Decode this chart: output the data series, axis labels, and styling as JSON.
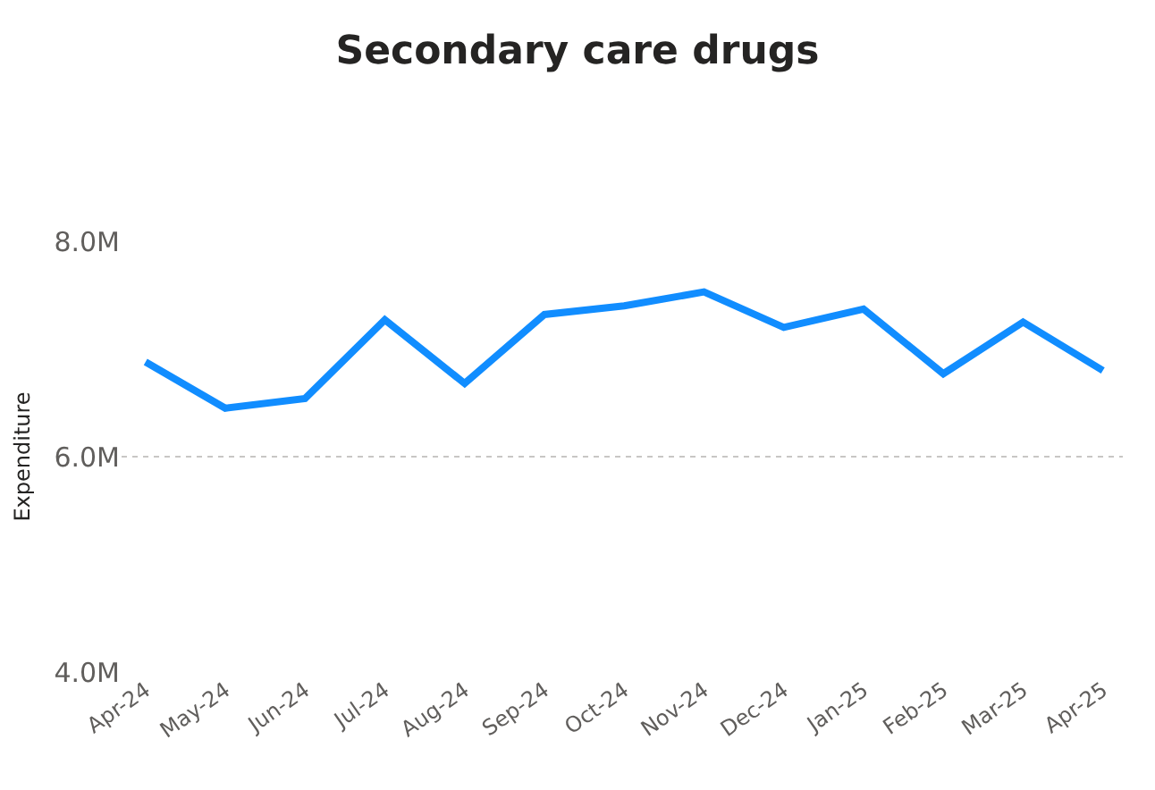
{
  "chart_data": {
    "type": "line",
    "title": "Secondary care drugs",
    "ylabel": "Expenditure",
    "categories": [
      "Apr-24",
      "May-24",
      "Jun-24",
      "Jul-24",
      "Aug-24",
      "Sep-24",
      "Oct-24",
      "Nov-24",
      "Dec-24",
      "Jan-25",
      "Feb-25",
      "Mar-25",
      "Apr-25"
    ],
    "series": [
      {
        "color": "#118dff",
        "values": [
          6880000,
          6450000,
          6540000,
          7270000,
          6680000,
          7320000,
          7400000,
          7530000,
          7200000,
          7370000,
          6770000,
          7250000,
          6800000
        ]
      }
    ],
    "ylim": [
      4000000,
      8000000
    ],
    "yticks": [
      {
        "value": 4000000,
        "label": "4.0M"
      },
      {
        "value": 6000000,
        "label": "6.0M"
      },
      {
        "value": 8000000,
        "label": "8.0M"
      }
    ],
    "grid": "y",
    "marker": "none",
    "line_style": "solid"
  }
}
